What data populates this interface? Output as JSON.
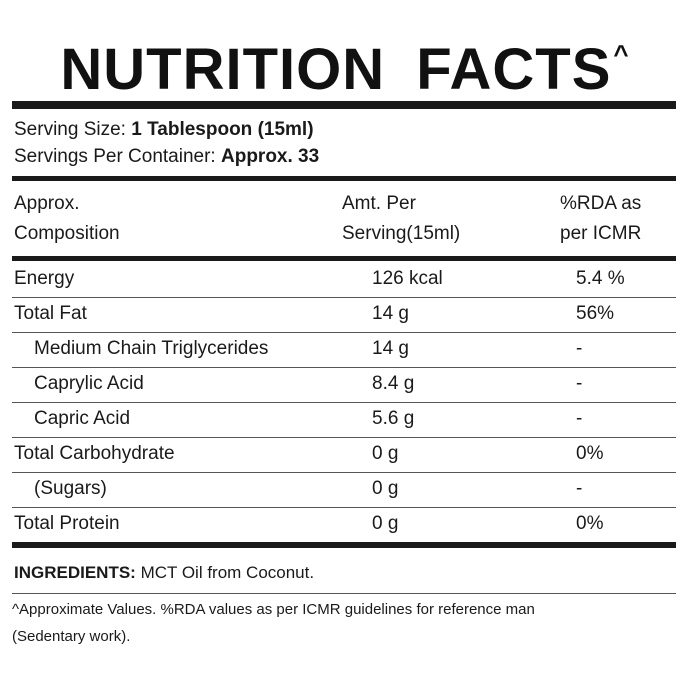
{
  "header": {
    "title": "NUTRITION FACTS",
    "title_mark": "^"
  },
  "serving": {
    "size_label": "Serving Size:",
    "size_value": "1 Tablespoon (15ml)",
    "per_container_label": "Servings Per Container:",
    "per_container_value": "Approx. 33"
  },
  "table": {
    "header": [
      [
        "Approx.",
        "Composition"
      ],
      [
        "Amt. Per",
        "Serving(15ml)"
      ],
      [
        "%RDA as",
        "per ICMR"
      ]
    ],
    "rows": [
      {
        "name": "Energy",
        "amount": "126 kcal",
        "rda": "5.4 %"
      },
      {
        "name": "Total Fat",
        "amount": "14 g",
        "rda": "56%",
        "components": [
          {
            "name": "Medium Chain Triglycerides",
            "amount": "14 g",
            "rda": "-"
          },
          {
            "name": "Caprylic Acid",
            "amount": "8.4 g",
            "rda": "-"
          },
          {
            "name": "Capric Acid",
            "amount": "5.6 g",
            "rda": "-"
          }
        ]
      },
      {
        "name": "Total Carbohydrate",
        "amount": "0 g",
        "rda": "0%",
        "components": [
          {
            "name": "(Sugars)",
            "amount": "0 g",
            "rda": "-"
          }
        ]
      },
      {
        "name": "Total Protein",
        "amount": "0 g",
        "rda": "0%"
      }
    ]
  },
  "ingredients": {
    "label": "INGREDIENTS:",
    "value": "MCT Oil from Coconut."
  },
  "footnote": [
    "^Approximate Values. %RDA values as per ICMR guidelines for reference man",
    "(Sedentary work)."
  ]
}
